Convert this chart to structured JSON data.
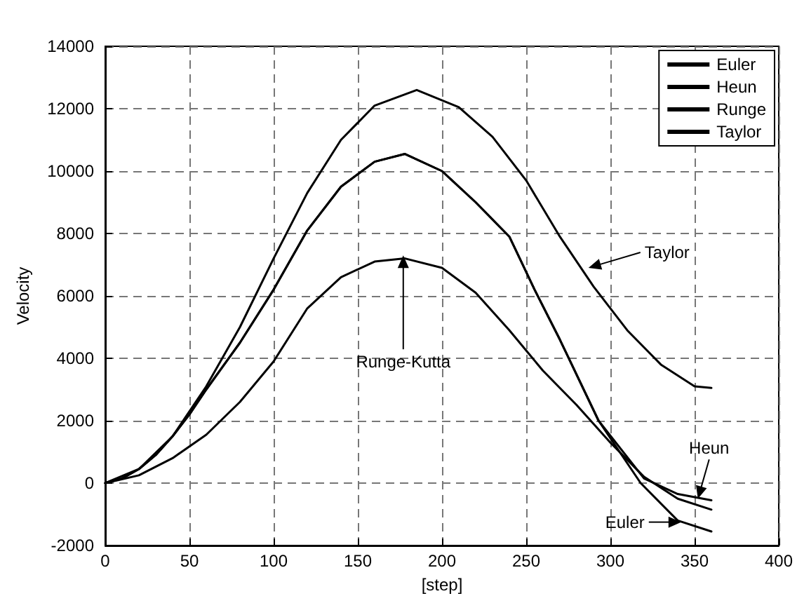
{
  "chart_data": {
    "type": "line",
    "xlabel": "[step]",
    "ylabel": "Velocity",
    "xlim": [
      0,
      400
    ],
    "xticks": [
      0,
      50,
      100,
      150,
      200,
      250,
      300,
      350,
      400
    ],
    "ylim": [
      -2000,
      14000
    ],
    "yticks": [
      -2000,
      0,
      2000,
      4000,
      6000,
      8000,
      10000,
      12000,
      14000
    ],
    "grid": true,
    "legend": "top right",
    "marker": "none",
    "line_style": "solid",
    "series": [
      {
        "name": "Euler",
        "color": "#000000",
        "x": [
          0,
          10,
          20,
          30,
          40,
          50,
          60,
          80,
          100,
          120,
          140,
          160,
          178,
          200,
          220,
          240,
          255,
          270,
          293,
          318,
          340,
          360
        ],
        "values": [
          0,
          150,
          450,
          900,
          1500,
          2200,
          3000,
          4500,
          6200,
          8100,
          9500,
          10300,
          10550,
          10000,
          9000,
          7900,
          6200,
          4600,
          2000,
          0,
          -1200,
          -1550
        ]
      },
      {
        "name": "Heun",
        "color": "#000000",
        "x": [
          0,
          10,
          20,
          30,
          40,
          50,
          60,
          80,
          100,
          120,
          140,
          160,
          178,
          200,
          220,
          240,
          255,
          270,
          293,
          320,
          340,
          360
        ],
        "values": [
          0,
          150,
          450,
          900,
          1500,
          2200,
          3000,
          4500,
          6200,
          8100,
          9500,
          10300,
          10550,
          10000,
          9000,
          7900,
          6200,
          4600,
          2000,
          150,
          -350,
          -550
        ]
      },
      {
        "name": "Runge",
        "color": "#000000",
        "x": [
          0,
          20,
          40,
          60,
          80,
          100,
          120,
          140,
          160,
          178,
          200,
          220,
          240,
          260,
          280,
          300,
          320,
          340,
          360
        ],
        "values": [
          0,
          250,
          800,
          1550,
          2600,
          3900,
          5600,
          6600,
          7100,
          7200,
          6900,
          6100,
          4900,
          3600,
          2500,
          1300,
          200,
          -500,
          -850
        ]
      },
      {
        "name": "Taylor",
        "color": "#000000",
        "x": [
          0,
          20,
          40,
          60,
          80,
          100,
          120,
          140,
          160,
          185,
          210,
          230,
          250,
          270,
          290,
          310,
          330,
          350,
          360
        ],
        "values": [
          0,
          450,
          1500,
          3100,
          5000,
          7200,
          9300,
          11000,
          12100,
          12600,
          12050,
          11100,
          9700,
          7900,
          6300,
          4900,
          3800,
          3100,
          3050
        ]
      }
    ],
    "annotations": [
      {
        "text": "Taylor",
        "x": 287,
        "y": 6900
      },
      {
        "text": "Runge-Kutta",
        "x": 177,
        "y": 7300
      },
      {
        "text": "Heun",
        "x": 352,
        "y": -500
      },
      {
        "text": "Euler",
        "x": 342,
        "y": -1250
      }
    ]
  }
}
